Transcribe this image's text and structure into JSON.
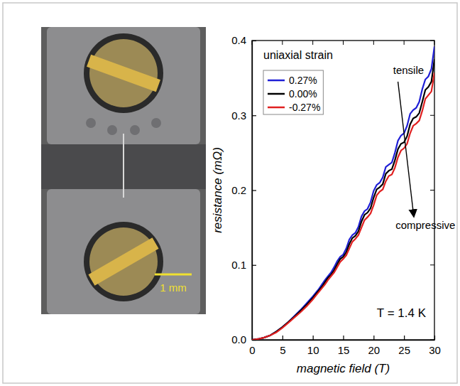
{
  "photo": {
    "scale_label": "1 mm"
  },
  "chart_data": {
    "type": "line",
    "title": "uniaxial strain",
    "x_label": "magnetic field (T)",
    "y_label": "resistance (mΩ)",
    "annotations": [
      "tensile",
      "compressive",
      "T = 1.4 K"
    ],
    "legend": "upper left",
    "grid": false,
    "xlim": [
      0,
      30
    ],
    "xticks": [
      0,
      5,
      10,
      15,
      20,
      25,
      30
    ],
    "ylim": [
      0,
      0.4
    ],
    "yticks": [
      {
        "value": 0,
        "label": "0.0"
      },
      0.1,
      0.2,
      0.3,
      0.4
    ],
    "x": [
      0,
      1,
      2,
      3,
      4,
      5,
      6,
      7,
      8,
      9,
      10,
      10.5,
      11,
      11.5,
      12,
      12.5,
      13,
      13.5,
      14,
      14.5,
      15,
      15.5,
      16,
      16.5,
      17,
      17.5,
      18,
      18.5,
      19,
      19.5,
      20,
      20.5,
      21,
      21.5,
      22,
      22.5,
      23,
      23.5,
      24,
      24.5,
      25,
      25.5,
      26,
      26.5,
      27,
      27.5,
      28,
      28.5,
      29,
      29.5,
      30
    ],
    "series": [
      {
        "name": "0.27%",
        "color": "#1f1fd6",
        "values": [
          0,
          0.001,
          0.003,
          0.006,
          0.011,
          0.017,
          0.024,
          0.032,
          0.04,
          0.049,
          0.058,
          0.063,
          0.068,
          0.074,
          0.08,
          0.085,
          0.09,
          0.097,
          0.105,
          0.111,
          0.114,
          0.122,
          0.134,
          0.14,
          0.143,
          0.151,
          0.165,
          0.172,
          0.175,
          0.184,
          0.199,
          0.207,
          0.21,
          0.217,
          0.231,
          0.234,
          0.237,
          0.25,
          0.266,
          0.273,
          0.276,
          0.286,
          0.302,
          0.307,
          0.31,
          0.318,
          0.335,
          0.348,
          0.352,
          0.362,
          0.392
        ]
      },
      {
        "name": "0.00%",
        "color": "#000000",
        "values": [
          0,
          0.001,
          0.003,
          0.006,
          0.011,
          0.017,
          0.024,
          0.031,
          0.039,
          0.047,
          0.056,
          0.061,
          0.066,
          0.071,
          0.077,
          0.083,
          0.087,
          0.093,
          0.101,
          0.108,
          0.111,
          0.117,
          0.128,
          0.136,
          0.139,
          0.145,
          0.158,
          0.167,
          0.17,
          0.176,
          0.19,
          0.201,
          0.204,
          0.208,
          0.222,
          0.226,
          0.228,
          0.24,
          0.255,
          0.262,
          0.264,
          0.272,
          0.288,
          0.296,
          0.298,
          0.303,
          0.318,
          0.334,
          0.338,
          0.345,
          0.375
        ]
      },
      {
        "name": "-0.27%",
        "color": "#e02020",
        "values": [
          0,
          0.001,
          0.003,
          0.006,
          0.01,
          0.016,
          0.023,
          0.03,
          0.037,
          0.045,
          0.054,
          0.059,
          0.064,
          0.069,
          0.074,
          0.08,
          0.085,
          0.09,
          0.097,
          0.104,
          0.108,
          0.113,
          0.122,
          0.131,
          0.135,
          0.14,
          0.15,
          0.16,
          0.164,
          0.169,
          0.18,
          0.193,
          0.198,
          0.201,
          0.212,
          0.219,
          0.221,
          0.23,
          0.244,
          0.253,
          0.256,
          0.262,
          0.276,
          0.286,
          0.289,
          0.293,
          0.306,
          0.322,
          0.327,
          0.332,
          0.357
        ]
      }
    ]
  }
}
